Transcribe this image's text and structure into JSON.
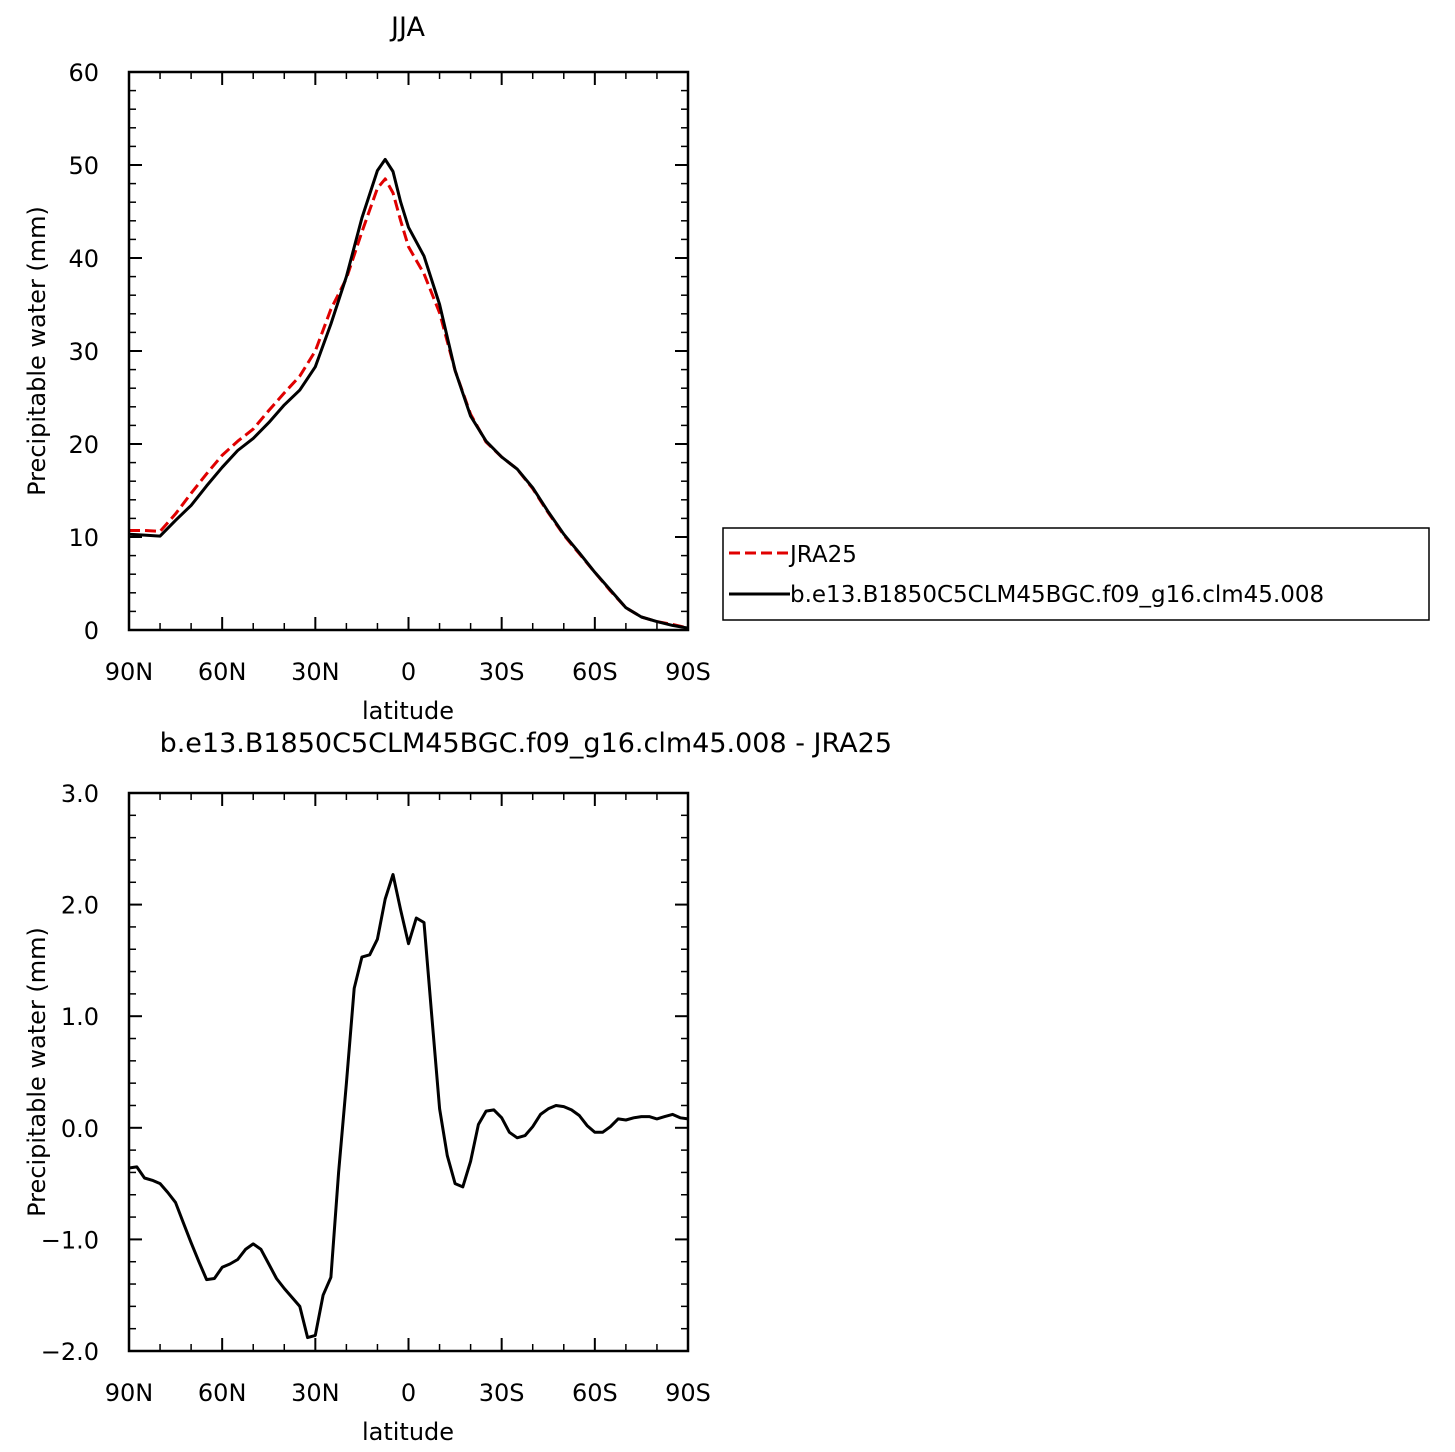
{
  "chart_data": [
    {
      "type": "line",
      "title": "JJA",
      "xlabel": "latitude",
      "ylabel": "Precipitable water (mm)",
      "xlim": [
        -90,
        90
      ],
      "ylim": [
        0,
        60
      ],
      "x_direction": "north-to-south",
      "x_ticks": [
        {
          "value": -90,
          "label": "90N"
        },
        {
          "value": -60,
          "label": "60N"
        },
        {
          "value": -30,
          "label": "30N"
        },
        {
          "value": 0,
          "label": "0"
        },
        {
          "value": 30,
          "label": "30S"
        },
        {
          "value": 60,
          "label": "60S"
        },
        {
          "value": 90,
          "label": "90S"
        }
      ],
      "y_ticks": [
        {
          "value": 0,
          "label": "0"
        },
        {
          "value": 10,
          "label": "10"
        },
        {
          "value": 20,
          "label": "20"
        },
        {
          "value": 30,
          "label": "30"
        },
        {
          "value": 40,
          "label": "40"
        },
        {
          "value": 50,
          "label": "50"
        },
        {
          "value": 60,
          "label": "60"
        }
      ],
      "legend_position": "right",
      "grid": false,
      "x": [
        -90,
        -85,
        -80,
        -75,
        -70,
        -65,
        -60,
        -55,
        -50,
        -45,
        -40,
        -35,
        -30,
        -25,
        -20,
        -15,
        -10,
        -7.5,
        -5,
        -2.5,
        0,
        5,
        10,
        15,
        20,
        25,
        30,
        35,
        40,
        45,
        50,
        55,
        60,
        65,
        70,
        75,
        80,
        85,
        90
      ],
      "series": [
        {
          "name": "JRA25",
          "color": "#e00000",
          "dash": "dashed",
          "values": [
            10.7,
            10.7,
            10.6,
            12.5,
            14.7,
            16.8,
            18.8,
            20.3,
            21.6,
            23.6,
            25.5,
            27.3,
            30.0,
            34.5,
            37.8,
            42.8,
            47.5,
            48.5,
            47.0,
            44.0,
            41.2,
            38.3,
            34.1,
            27.9,
            23.2,
            20.2,
            18.6,
            17.3,
            15.2,
            12.6,
            10.2,
            8.2,
            6.2,
            4.2,
            2.4,
            1.4,
            0.9,
            0.6,
            0.2
          ]
        },
        {
          "name": "b.e13.B1850C5CLM45BGC.f09_g16.clm45.008",
          "color": "#000000",
          "dash": "solid",
          "values": [
            10.3,
            10.2,
            10.1,
            11.8,
            13.4,
            15.5,
            17.5,
            19.3,
            20.6,
            22.3,
            24.2,
            25.8,
            28.3,
            32.9,
            38.0,
            44.3,
            49.4,
            50.6,
            49.3,
            46.0,
            43.3,
            40.2,
            35.0,
            27.9,
            23.0,
            20.3,
            18.6,
            17.3,
            15.3,
            12.7,
            10.3,
            8.3,
            6.2,
            4.3,
            2.4,
            1.4,
            0.9,
            0.5,
            0.2
          ]
        }
      ]
    },
    {
      "type": "line",
      "title": "b.e13.B1850C5CLM45BGC.f09_g16.clm45.008 - JRA25",
      "xlabel": "latitude",
      "ylabel": "Precipitable water (mm)",
      "xlim": [
        -90,
        90
      ],
      "ylim": [
        -2.0,
        3.0
      ],
      "x_direction": "north-to-south",
      "x_ticks": [
        {
          "value": -90,
          "label": "90N"
        },
        {
          "value": -60,
          "label": "60N"
        },
        {
          "value": -30,
          "label": "30N"
        },
        {
          "value": 0,
          "label": "0"
        },
        {
          "value": 30,
          "label": "30S"
        },
        {
          "value": 60,
          "label": "60S"
        },
        {
          "value": 90,
          "label": "90S"
        }
      ],
      "y_ticks": [
        {
          "value": -2.0,
          "label": "−2.0"
        },
        {
          "value": -1.0,
          "label": "−1.0"
        },
        {
          "value": 0.0,
          "label": "0.0"
        },
        {
          "value": 1.0,
          "label": "1.0"
        },
        {
          "value": 2.0,
          "label": "2.0"
        },
        {
          "value": 3.0,
          "label": "3.0"
        }
      ],
      "grid": false,
      "series": [
        {
          "color": "#000000",
          "dash": "solid",
          "x": [
            -90,
            -87.5,
            -85,
            -82.5,
            -80,
            -77.5,
            -75,
            -72.5,
            -70,
            -67.5,
            -65,
            -62.5,
            -60,
            -57.5,
            -55,
            -52.5,
            -50,
            -47.5,
            -45,
            -42.5,
            -40,
            -37.5,
            -35,
            -32.5,
            -30,
            -27.5,
            -25,
            -22.5,
            -20,
            -17.5,
            -15,
            -12.5,
            -10,
            -7.5,
            -5,
            -2.5,
            0,
            2.5,
            5,
            7.5,
            10,
            12.5,
            15,
            17.5,
            20,
            22.5,
            25,
            27.5,
            30,
            32.5,
            35,
            37.5,
            40,
            42.5,
            45,
            47.5,
            50,
            52.5,
            55,
            57.5,
            60,
            62.5,
            65,
            67.5,
            70,
            72.5,
            75,
            77.5,
            80,
            82.5,
            85,
            87.5,
            90
          ],
          "values": [
            -0.36,
            -0.35,
            -0.45,
            -0.47,
            -0.5,
            -0.58,
            -0.67,
            -0.85,
            -1.03,
            -1.2,
            -1.36,
            -1.35,
            -1.25,
            -1.22,
            -1.18,
            -1.09,
            -1.04,
            -1.09,
            -1.22,
            -1.35,
            -1.44,
            -1.52,
            -1.6,
            -1.88,
            -1.86,
            -1.5,
            -1.34,
            -0.4,
            0.4,
            1.25,
            1.53,
            1.55,
            1.69,
            2.05,
            2.27,
            1.95,
            1.65,
            1.88,
            1.84,
            1.0,
            0.17,
            -0.25,
            -0.5,
            -0.53,
            -0.3,
            0.03,
            0.15,
            0.16,
            0.09,
            -0.04,
            -0.09,
            -0.07,
            0.01,
            0.12,
            0.17,
            0.2,
            0.19,
            0.16,
            0.11,
            0.02,
            -0.04,
            -0.04,
            0.01,
            0.08,
            0.07,
            0.09,
            0.1,
            0.1,
            0.08,
            0.1,
            0.12,
            0.09,
            0.08
          ]
        }
      ]
    }
  ]
}
